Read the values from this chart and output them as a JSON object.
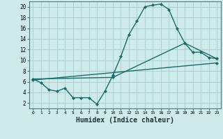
{
  "bg_color": "#ceeaea",
  "grid_color": "#b0d0d0",
  "line_color": "#1a6b6b",
  "marker": "D",
  "markersize": 2.0,
  "linewidth": 1.0,
  "xlabel": "Humidex (Indice chaleur)",
  "xlabel_fontsize": 7,
  "ylim": [
    1,
    21
  ],
  "xlim": [
    -0.5,
    23.5
  ],
  "yticks": [
    2,
    4,
    6,
    8,
    10,
    12,
    14,
    16,
    18,
    20
  ],
  "ytick_labels": [
    "2",
    "4",
    "6",
    "8",
    "10",
    "12",
    "14",
    "16",
    "18",
    "20"
  ],
  "xtick_labels": [
    "0",
    "1",
    "2",
    "3",
    "4",
    "5",
    "6",
    "7",
    "8",
    "9",
    "10",
    "11",
    "12",
    "13",
    "14",
    "15",
    "16",
    "17",
    "18",
    "19",
    "20",
    "21",
    "22",
    "23"
  ],
  "series1_x": [
    0,
    1,
    2,
    3,
    4,
    5,
    6,
    7,
    8,
    9,
    10,
    11,
    12,
    13,
    14,
    15,
    16,
    17,
    18,
    19,
    20,
    21,
    22,
    23
  ],
  "series1_y": [
    6.5,
    5.8,
    4.5,
    4.2,
    4.8,
    3.0,
    3.0,
    3.0,
    1.8,
    4.2,
    7.2,
    10.7,
    14.8,
    17.3,
    20.0,
    20.3,
    20.5,
    19.5,
    16.0,
    13.2,
    11.5,
    11.5,
    10.5,
    10.3
  ],
  "series2_x": [
    0,
    10,
    19,
    23
  ],
  "series2_y": [
    6.5,
    6.8,
    13.2,
    10.3
  ],
  "series3_x": [
    0,
    23
  ],
  "series3_y": [
    6.3,
    9.5
  ]
}
